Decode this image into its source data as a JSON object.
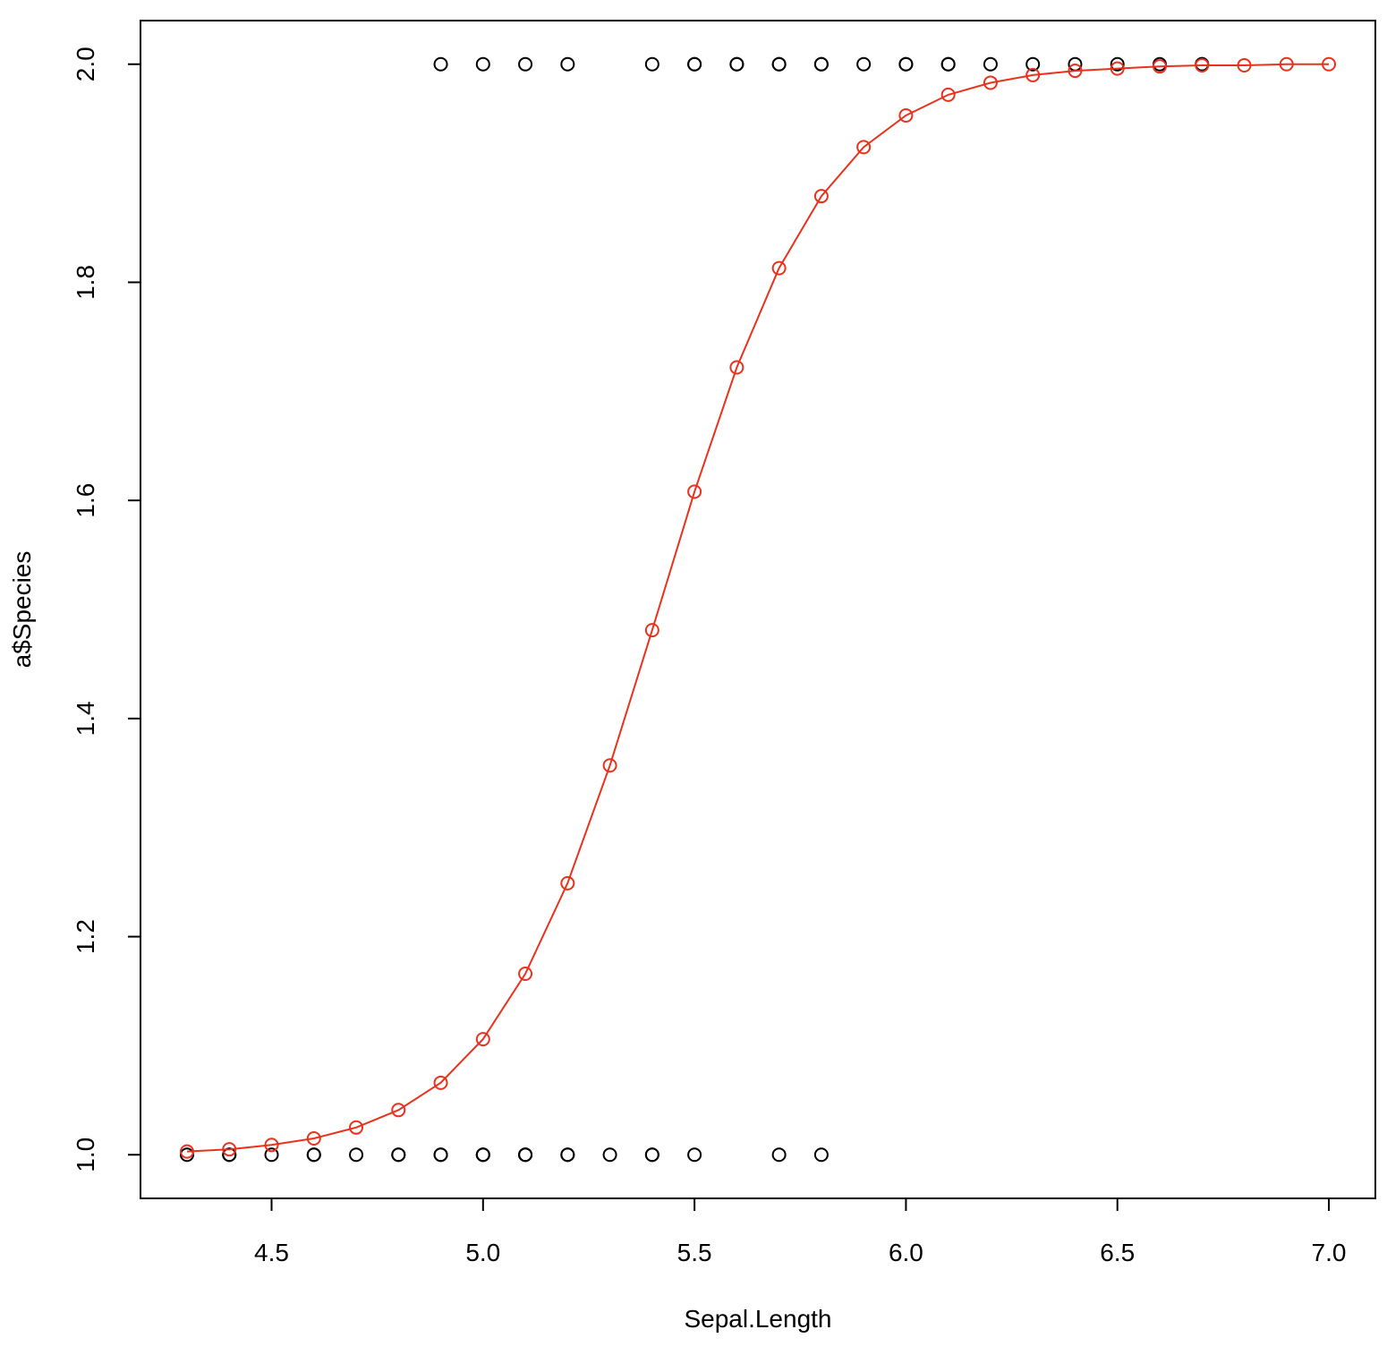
{
  "chart_data": {
    "type": "scatter",
    "title": "",
    "xlabel": "Sepal.Length",
    "ylabel": "a$Species",
    "xlim": [
      4.19,
      7.11
    ],
    "ylim": [
      0.96,
      2.04
    ],
    "xticks": [
      "4.5",
      "5.0",
      "5.5",
      "6.0",
      "6.5",
      "7.0"
    ],
    "yticks": [
      "1.0",
      "1.2",
      "1.4",
      "1.6",
      "1.8",
      "2.0"
    ],
    "grid": false,
    "legend": "none",
    "series": [
      {
        "kind": "points",
        "color": "#000000",
        "points": [
          [
            4.3,
            1
          ],
          [
            4.4,
            1
          ],
          [
            4.4,
            1
          ],
          [
            4.5,
            1
          ],
          [
            4.6,
            1
          ],
          [
            4.6,
            1
          ],
          [
            4.7,
            1
          ],
          [
            4.8,
            1
          ],
          [
            4.8,
            1
          ],
          [
            4.9,
            1
          ],
          [
            4.9,
            1
          ],
          [
            5.0,
            1
          ],
          [
            5.0,
            1
          ],
          [
            5.0,
            1
          ],
          [
            5.1,
            1
          ],
          [
            5.1,
            1
          ],
          [
            5.1,
            1
          ],
          [
            5.2,
            1
          ],
          [
            5.2,
            1
          ],
          [
            5.3,
            1
          ],
          [
            5.4,
            1
          ],
          [
            5.4,
            1
          ],
          [
            5.5,
            1
          ],
          [
            5.7,
            1
          ],
          [
            5.8,
            1
          ],
          [
            4.9,
            2
          ],
          [
            5.0,
            2
          ],
          [
            5.1,
            2
          ],
          [
            5.2,
            2
          ],
          [
            5.4,
            2
          ],
          [
            5.5,
            2
          ],
          [
            5.5,
            2
          ],
          [
            5.6,
            2
          ],
          [
            5.6,
            2
          ],
          [
            5.7,
            2
          ],
          [
            5.7,
            2
          ],
          [
            5.8,
            2
          ],
          [
            5.8,
            2
          ],
          [
            5.9,
            2
          ],
          [
            6.0,
            2
          ],
          [
            6.0,
            2
          ],
          [
            6.1,
            2
          ],
          [
            6.1,
            2
          ],
          [
            6.2,
            2
          ],
          [
            6.3,
            2
          ],
          [
            6.4,
            2
          ],
          [
            6.5,
            2
          ],
          [
            6.6,
            2
          ],
          [
            6.7,
            2
          ],
          [
            6.7,
            2
          ]
        ]
      },
      {
        "kind": "line-points",
        "color": "#e8321e",
        "points": [
          [
            4.3,
            1.003
          ],
          [
            4.4,
            1.005
          ],
          [
            4.5,
            1.009
          ],
          [
            4.6,
            1.015
          ],
          [
            4.7,
            1.025
          ],
          [
            4.8,
            1.041
          ],
          [
            4.9,
            1.066
          ],
          [
            5.0,
            1.106
          ],
          [
            5.1,
            1.166
          ],
          [
            5.2,
            1.249
          ],
          [
            5.3,
            1.357
          ],
          [
            5.4,
            1.481
          ],
          [
            5.5,
            1.608
          ],
          [
            5.6,
            1.722
          ],
          [
            5.7,
            1.813
          ],
          [
            5.8,
            1.879
          ],
          [
            5.9,
            1.924
          ],
          [
            6.0,
            1.953
          ],
          [
            6.1,
            1.972
          ],
          [
            6.2,
            1.983
          ],
          [
            6.3,
            1.99
          ],
          [
            6.4,
            1.994
          ],
          [
            6.5,
            1.996
          ],
          [
            6.6,
            1.998
          ],
          [
            6.7,
            1.999
          ],
          [
            6.8,
            1.999
          ],
          [
            6.9,
            2.0
          ],
          [
            7.0,
            2.0
          ]
        ]
      }
    ]
  }
}
